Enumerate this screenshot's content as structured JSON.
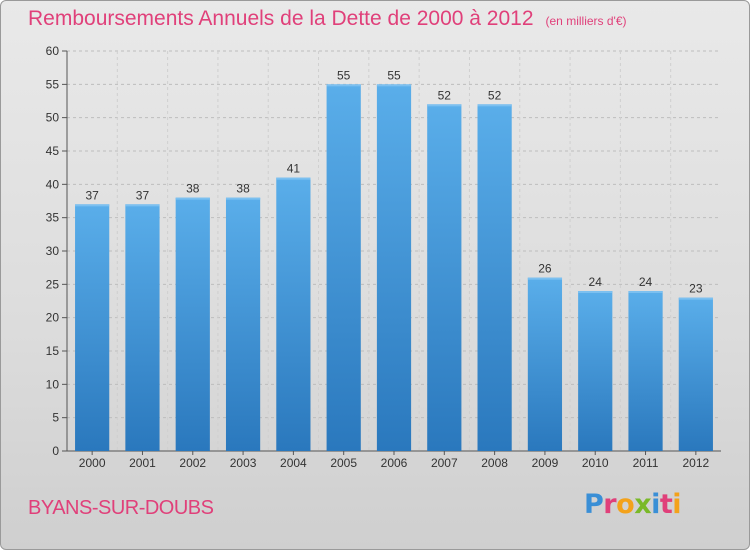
{
  "header": {
    "title": "Remboursements Annuels de la Dette de 2000 à 2012",
    "subtitle": "(en milliers d'€)"
  },
  "footer": {
    "city": "BYANS-SUR-DOUBS",
    "logo_letters": [
      {
        "ch": "P",
        "color": "#3a8fd6"
      },
      {
        "ch": "r",
        "color": "#e0407a"
      },
      {
        "ch": "o",
        "color": "#f3a21b"
      },
      {
        "ch": "x",
        "color": "#7ab928"
      },
      {
        "ch": "i",
        "color": "#3a8fd6"
      },
      {
        "ch": "t",
        "color": "#e0407a"
      },
      {
        "ch": "i",
        "color": "#f3a21b"
      }
    ]
  },
  "chart_data": {
    "type": "bar",
    "categories": [
      "2000",
      "2001",
      "2002",
      "2003",
      "2004",
      "2005",
      "2006",
      "2007",
      "2008",
      "2009",
      "2010",
      "2011",
      "2012"
    ],
    "values": [
      37,
      37,
      38,
      38,
      41,
      55,
      55,
      52,
      52,
      26,
      24,
      24,
      23
    ],
    "title": "Remboursements Annuels de la Dette de 2000 à 2012",
    "xlabel": "",
    "ylabel": "",
    "ylim": [
      0,
      60
    ],
    "yticks": [
      0,
      5,
      10,
      15,
      20,
      25,
      30,
      35,
      40,
      45,
      50,
      55,
      60
    ],
    "grid": true,
    "bar_color": "#4a9fe0"
  }
}
